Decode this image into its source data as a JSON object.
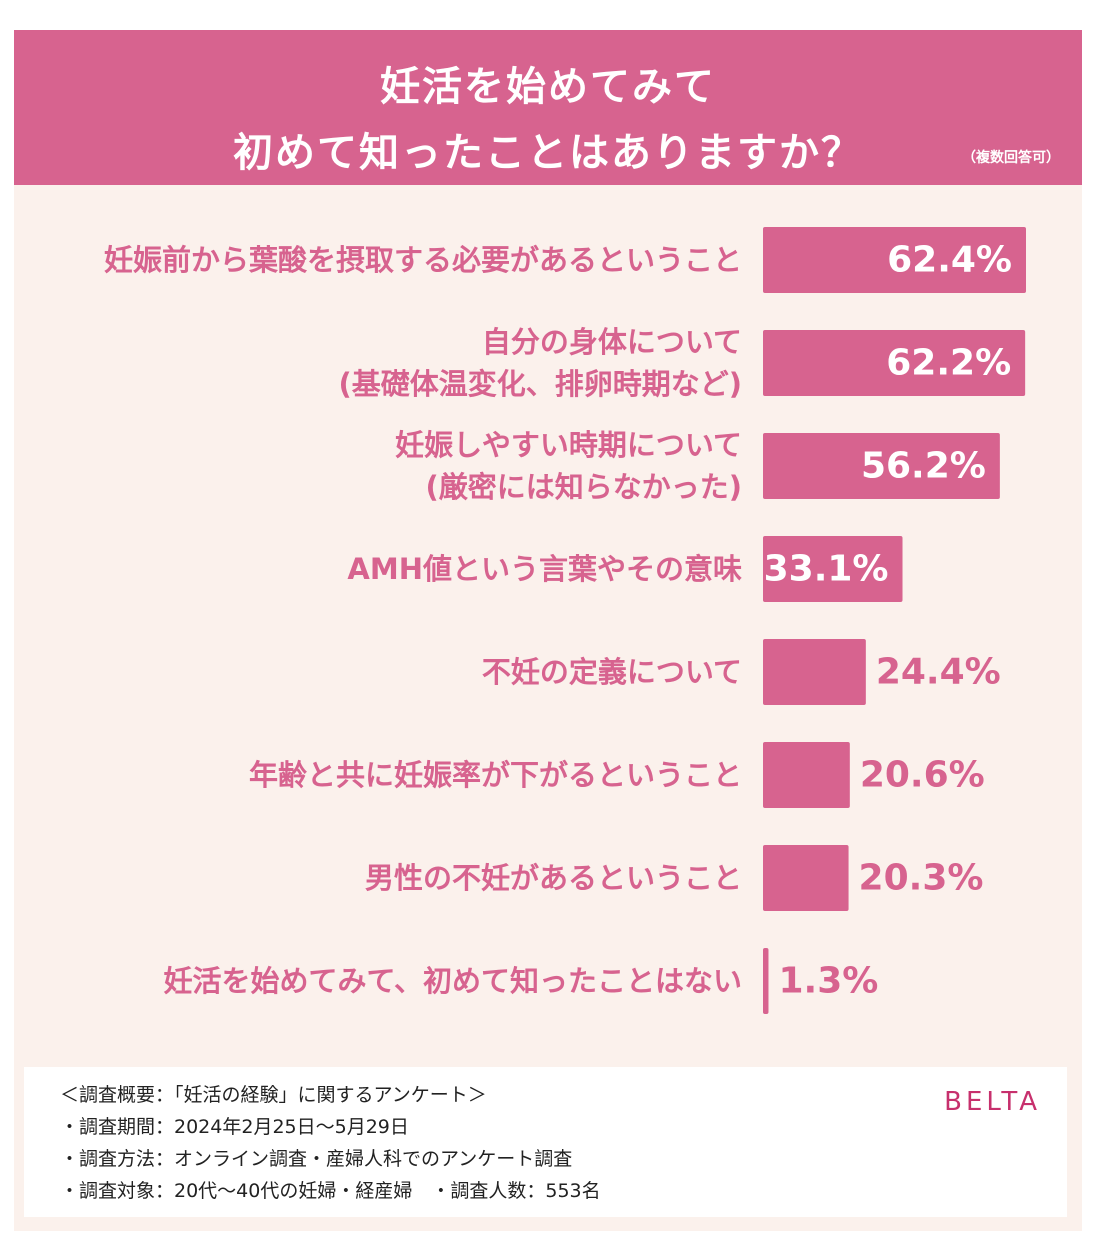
{
  "title": {
    "line1": "妊活を始めてみて",
    "line2": "初めて知ったことはありますか？",
    "note": "（複数回答可）"
  },
  "colors": {
    "accent": "#d7638f",
    "background": "#fbf1ec"
  },
  "chart_data": {
    "type": "bar",
    "orientation": "horizontal",
    "categories": [
      [
        "妊娠前から葉酸を摂取する必要があるということ"
      ],
      [
        "自分の身体について",
        "(基礎体温変化、排卵時期など)"
      ],
      [
        "妊娠しやすい時期について",
        "(厳密には知らなかった)"
      ],
      [
        "AMH値という言葉やその意味"
      ],
      [
        "不妊の定義について"
      ],
      [
        "年齢と共に妊娠率が下がるということ"
      ],
      [
        "男性の不妊があるということ"
      ],
      [
        "妊活を始めてみて、初めて知ったことはない"
      ]
    ],
    "values": [
      62.4,
      62.2,
      56.2,
      33.1,
      24.4,
      20.6,
      20.3,
      1.3
    ],
    "value_labels": [
      "62.4%",
      "62.2%",
      "56.2%",
      "33.1%",
      "24.4%",
      "20.6%",
      "20.3%",
      "1.3%"
    ],
    "unit": "%",
    "xlim": [
      0,
      62.4
    ]
  },
  "footer": {
    "survey_lines": [
      "＜調査概要：「妊活の経験」に関するアンケート＞",
      "・調査期間：2024年2月25日〜5月29日",
      "・調査方法：オンライン調査・産婦人科でのアンケート調査",
      "・調査対象：20代〜40代の妊婦・経産婦　・調査人数：553名"
    ],
    "logo": "BELTA"
  }
}
